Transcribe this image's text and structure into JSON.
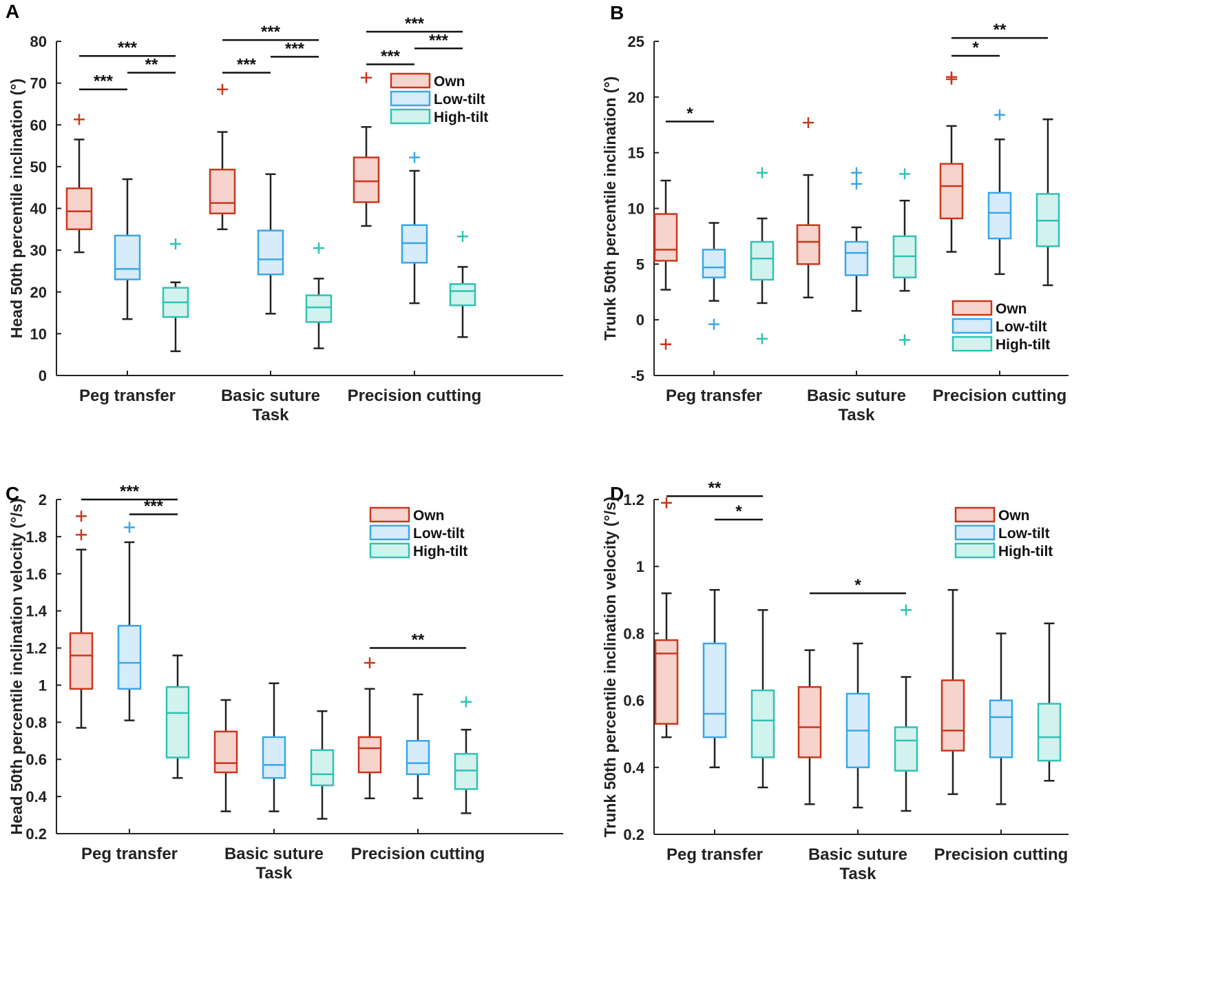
{
  "figure": {
    "categories": [
      "Peg transfer",
      "Basic suture",
      "Precision cutting"
    ],
    "xlabel": "Task",
    "legend": [
      "Own",
      "Low-tilt",
      "High-tilt"
    ],
    "colors": {
      "Own": {
        "stroke": "#c8371c",
        "fill": "#f6d3cc"
      },
      "Low-tilt": {
        "stroke": "#3aa6e6",
        "fill": "#d6ecfb"
      },
      "High-tilt": {
        "stroke": "#2ec2b4",
        "fill": "#d2f2ee"
      }
    }
  },
  "chart_data": [
    {
      "panel": "A",
      "type": "box",
      "ylabel": "Head 50th percentile inclination (°)",
      "ylim": [
        0,
        80
      ],
      "yticks": [
        0,
        10,
        20,
        30,
        40,
        50,
        60,
        70,
        80
      ],
      "ytick_labels": [
        "0",
        "10",
        "20",
        "30",
        "40",
        "50",
        "60",
        "70",
        "80"
      ],
      "categories": [
        "Peg transfer",
        "Basic suture",
        "Precision cutting"
      ],
      "series": [
        {
          "name": "Own",
          "boxes": [
            {
              "wl": 29.5,
              "q1": 35,
              "median": 39.3,
              "q3": 44.8,
              "wh": 56.5,
              "outliers": [
                61.3
              ]
            },
            {
              "wl": 35,
              "q1": 38.8,
              "median": 41.3,
              "q3": 49.3,
              "wh": 58.3,
              "outliers": [
                68.5
              ]
            },
            {
              "wl": 35.8,
              "q1": 41.5,
              "median": 46.5,
              "q3": 52.2,
              "wh": 59.5,
              "outliers": [
                71.3
              ]
            }
          ]
        },
        {
          "name": "Low-tilt",
          "boxes": [
            {
              "wl": 13.5,
              "q1": 23,
              "median": 25.5,
              "q3": 33.5,
              "wh": 47,
              "outliers": []
            },
            {
              "wl": 14.8,
              "q1": 24.2,
              "median": 27.8,
              "q3": 34.7,
              "wh": 48.2,
              "outliers": []
            },
            {
              "wl": 17.3,
              "q1": 27,
              "median": 31.7,
              "q3": 36,
              "wh": 49,
              "outliers": [
                52.2
              ]
            }
          ]
        },
        {
          "name": "High-tilt",
          "boxes": [
            {
              "wl": 5.8,
              "q1": 14,
              "median": 17.5,
              "q3": 21,
              "wh": 22.3,
              "outliers": [
                31.5
              ]
            },
            {
              "wl": 6.5,
              "q1": 12.8,
              "median": 16.3,
              "q3": 19.2,
              "wh": 23.2,
              "outliers": [
                30.5
              ]
            },
            {
              "wl": 9.2,
              "q1": 16.8,
              "median": 20.2,
              "q3": 21.9,
              "wh": 26,
              "outliers": [
                33.3
              ]
            }
          ]
        }
      ],
      "significance": [
        {
          "cat": 0,
          "from": 0,
          "to": 2,
          "y": 76.5,
          "label": "***"
        },
        {
          "cat": 0,
          "from": 0,
          "to": 1,
          "y": 68.5,
          "label": "***"
        },
        {
          "cat": 0,
          "from": 1,
          "to": 2,
          "y": 72.5,
          "label": "**"
        },
        {
          "cat": 1,
          "from": 0,
          "to": 2,
          "y": 80.3,
          "label": "***"
        },
        {
          "cat": 1,
          "from": 0,
          "to": 1,
          "y": 72.5,
          "label": "***"
        },
        {
          "cat": 1,
          "from": 1,
          "to": 2,
          "y": 76.3,
          "label": "***"
        },
        {
          "cat": 2,
          "from": 0,
          "to": 2,
          "y": 82.3,
          "label": "***"
        },
        {
          "cat": 2,
          "from": 0,
          "to": 1,
          "y": 74.5,
          "label": "***"
        },
        {
          "cat": 2,
          "from": 1,
          "to": 2,
          "y": 78.3,
          "label": "***"
        }
      ]
    },
    {
      "panel": "B",
      "type": "box",
      "ylabel": "Trunk 50th percentile inclination (°)",
      "ylim": [
        -5,
        25
      ],
      "yticks": [
        -5,
        0,
        5,
        10,
        15,
        20,
        25
      ],
      "ytick_labels": [
        "-5",
        "0",
        "5",
        "10",
        "15",
        "20",
        "25"
      ],
      "categories": [
        "Peg transfer",
        "Basic suture",
        "Precision cutting"
      ],
      "series": [
        {
          "name": "Own",
          "boxes": [
            {
              "wl": 2.7,
              "q1": 5.3,
              "median": 6.3,
              "q3": 9.5,
              "wh": 12.5,
              "outliers": [
                -2.2
              ]
            },
            {
              "wl": 2,
              "q1": 5,
              "median": 7,
              "q3": 8.5,
              "wh": 13,
              "outliers": [
                17.7
              ]
            },
            {
              "wl": 6.1,
              "q1": 9.1,
              "median": 12,
              "q3": 14,
              "wh": 17.4,
              "outliers": [
                21.6,
                21.8
              ]
            }
          ]
        },
        {
          "name": "Low-tilt",
          "boxes": [
            {
              "wl": 1.7,
              "q1": 3.8,
              "median": 4.7,
              "q3": 6.3,
              "wh": 8.7,
              "outliers": [
                -0.4
              ]
            },
            {
              "wl": 0.8,
              "q1": 4,
              "median": 6,
              "q3": 7,
              "wh": 8.3,
              "outliers": [
                12.2,
                13.2
              ]
            },
            {
              "wl": 4.1,
              "q1": 7.3,
              "median": 9.6,
              "q3": 11.4,
              "wh": 16.2,
              "outliers": [
                18.4
              ]
            }
          ]
        },
        {
          "name": "High-tilt",
          "boxes": [
            {
              "wl": 1.5,
              "q1": 3.6,
              "median": 5.5,
              "q3": 7,
              "wh": 9.1,
              "outliers": [
                -1.7,
                13.2
              ]
            },
            {
              "wl": 2.6,
              "q1": 3.8,
              "median": 5.7,
              "q3": 7.5,
              "wh": 10.7,
              "outliers": [
                -1.8,
                13.1
              ]
            },
            {
              "wl": 3.1,
              "q1": 6.6,
              "median": 8.9,
              "q3": 11.3,
              "wh": 18,
              "outliers": []
            }
          ]
        }
      ],
      "significance": [
        {
          "cat": 0,
          "from": 0,
          "to": 1,
          "y": 17.8,
          "label": "*"
        },
        {
          "cat": 2,
          "from": 0,
          "to": 2,
          "y": 25.3,
          "label": "**"
        },
        {
          "cat": 2,
          "from": 0,
          "to": 1,
          "y": 23.7,
          "label": "*"
        }
      ]
    },
    {
      "panel": "C",
      "type": "box",
      "ylabel": "Head 50th percentile inclination velocity (°/s)",
      "ylim": [
        0.2,
        2
      ],
      "yticks": [
        0.2,
        0.4,
        0.6,
        0.8,
        1.0,
        1.2,
        1.4,
        1.6,
        1.8,
        2.0
      ],
      "ytick_labels": [
        "0.2",
        "0.4",
        "0.6",
        "0.8",
        "1",
        "1.2",
        "1.4",
        "1.6",
        "1.8",
        "2"
      ],
      "categories": [
        "Peg transfer",
        "Basic suture",
        "Precision cutting"
      ],
      "series": [
        {
          "name": "Own",
          "boxes": [
            {
              "wl": 0.77,
              "q1": 0.98,
              "median": 1.16,
              "q3": 1.28,
              "wh": 1.73,
              "outliers": [
                1.81,
                1.91
              ]
            },
            {
              "wl": 0.32,
              "q1": 0.53,
              "median": 0.58,
              "q3": 0.75,
              "wh": 0.92,
              "outliers": []
            },
            {
              "wl": 0.39,
              "q1": 0.53,
              "median": 0.66,
              "q3": 0.72,
              "wh": 0.98,
              "outliers": [
                1.12
              ]
            }
          ]
        },
        {
          "name": "Low-tilt",
          "boxes": [
            {
              "wl": 0.81,
              "q1": 0.98,
              "median": 1.12,
              "q3": 1.32,
              "wh": 1.77,
              "outliers": [
                1.85
              ]
            },
            {
              "wl": 0.32,
              "q1": 0.5,
              "median": 0.57,
              "q3": 0.72,
              "wh": 1.01,
              "outliers": []
            },
            {
              "wl": 0.39,
              "q1": 0.52,
              "median": 0.58,
              "q3": 0.7,
              "wh": 0.95,
              "outliers": []
            }
          ]
        },
        {
          "name": "High-tilt",
          "boxes": [
            {
              "wl": 0.5,
              "q1": 0.61,
              "median": 0.85,
              "q3": 0.99,
              "wh": 1.16,
              "outliers": []
            },
            {
              "wl": 0.28,
              "q1": 0.46,
              "median": 0.52,
              "q3": 0.65,
              "wh": 0.86,
              "outliers": []
            },
            {
              "wl": 0.31,
              "q1": 0.44,
              "median": 0.54,
              "q3": 0.63,
              "wh": 0.76,
              "outliers": [
                0.91
              ]
            }
          ]
        }
      ],
      "significance": [
        {
          "cat": 0,
          "from": 0,
          "to": 2,
          "y": 2.0,
          "label": "***"
        },
        {
          "cat": 0,
          "from": 1,
          "to": 2,
          "y": 1.92,
          "label": "***"
        },
        {
          "cat": 2,
          "from": 0,
          "to": 2,
          "y": 1.2,
          "label": "**"
        }
      ]
    },
    {
      "panel": "D",
      "type": "box",
      "ylabel": "Trunk 50th percentile inclination velocity (°/s)",
      "ylim": [
        0.2,
        1.2
      ],
      "yticks": [
        0.2,
        0.4,
        0.6,
        0.8,
        1.0,
        1.2
      ],
      "ytick_labels": [
        "0.2",
        "0.4",
        "0.6",
        "0.8",
        "1",
        "1.2"
      ],
      "categories": [
        "Peg transfer",
        "Basic suture",
        "Precision cutting"
      ],
      "series": [
        {
          "name": "Own",
          "boxes": [
            {
              "wl": 0.49,
              "q1": 0.53,
              "median": 0.74,
              "q3": 0.78,
              "wh": 0.92,
              "outliers": [
                1.19
              ]
            },
            {
              "wl": 0.29,
              "q1": 0.43,
              "median": 0.52,
              "q3": 0.64,
              "wh": 0.75,
              "outliers": []
            },
            {
              "wl": 0.32,
              "q1": 0.45,
              "median": 0.51,
              "q3": 0.66,
              "wh": 0.93,
              "outliers": []
            }
          ]
        },
        {
          "name": "Low-tilt",
          "boxes": [
            {
              "wl": 0.4,
              "q1": 0.49,
              "median": 0.56,
              "q3": 0.77,
              "wh": 0.93,
              "outliers": []
            },
            {
              "wl": 0.28,
              "q1": 0.4,
              "median": 0.51,
              "q3": 0.62,
              "wh": 0.77,
              "outliers": []
            },
            {
              "wl": 0.29,
              "q1": 0.43,
              "median": 0.55,
              "q3": 0.6,
              "wh": 0.8,
              "outliers": []
            }
          ]
        },
        {
          "name": "High-tilt",
          "boxes": [
            {
              "wl": 0.34,
              "q1": 0.43,
              "median": 0.54,
              "q3": 0.63,
              "wh": 0.87,
              "outliers": []
            },
            {
              "wl": 0.27,
              "q1": 0.39,
              "median": 0.48,
              "q3": 0.52,
              "wh": 0.67,
              "outliers": [
                0.87
              ]
            },
            {
              "wl": 0.36,
              "q1": 0.42,
              "median": 0.49,
              "q3": 0.59,
              "wh": 0.83,
              "outliers": []
            }
          ]
        }
      ],
      "significance": [
        {
          "cat": 0,
          "from": 0,
          "to": 2,
          "y": 1.21,
          "label": "**"
        },
        {
          "cat": 0,
          "from": 1,
          "to": 2,
          "y": 1.14,
          "label": "*"
        },
        {
          "cat": 1,
          "from": 0,
          "to": 2,
          "y": 0.92,
          "label": "*"
        }
      ]
    }
  ]
}
